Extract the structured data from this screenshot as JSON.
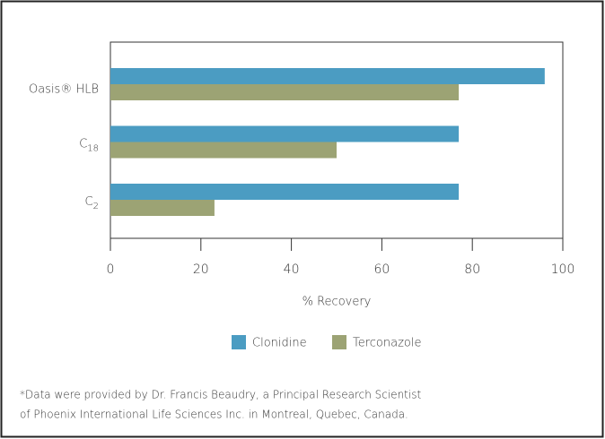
{
  "chart_data": {
    "type": "barh",
    "categories": [
      "Oasis® HLB",
      "C18",
      "C2"
    ],
    "series": [
      {
        "name": "Clonidine",
        "color": "#4b9cc2",
        "values": [
          96,
          77,
          77
        ]
      },
      {
        "name": "Terconazole",
        "color": "#9ca374",
        "values": [
          77,
          50,
          23
        ]
      }
    ],
    "xlabel": "% Recovery",
    "xlim": [
      0,
      100
    ],
    "xticks": [
      0,
      20,
      40,
      60,
      80,
      100
    ],
    "grid": false,
    "legend": "bottom",
    "notes": [
      "*Data were provided by Dr. Francis Beaudry, a Principal Research Scientist",
      "of  Phoenix International Life Sciences Inc. in Montreal, Quebec, Canada."
    ]
  }
}
